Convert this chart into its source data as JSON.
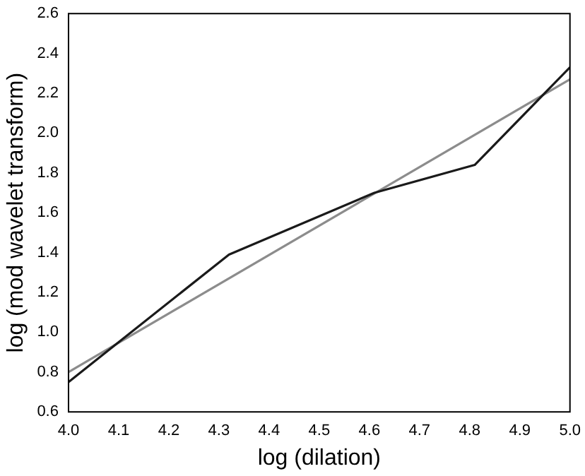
{
  "chart_data": {
    "type": "line",
    "xlabel": "log (dilation)",
    "ylabel": "log (mod wavelet transform)",
    "xlim": [
      4.0,
      5.0
    ],
    "ylim": [
      0.6,
      2.6
    ],
    "xticks": [
      {
        "value": 4.0,
        "label": "4.0"
      },
      {
        "value": 4.1,
        "label": "4.1"
      },
      {
        "value": 4.2,
        "label": "4.2"
      },
      {
        "value": 4.3,
        "label": "4.3"
      },
      {
        "value": 4.4,
        "label": "4.4"
      },
      {
        "value": 4.5,
        "label": "4.5"
      },
      {
        "value": 4.6,
        "label": "4.6"
      },
      {
        "value": 4.7,
        "label": "4.7"
      },
      {
        "value": 4.8,
        "label": "4.8"
      },
      {
        "value": 4.9,
        "label": "4.9"
      },
      {
        "value": 5.0,
        "label": "5.0"
      }
    ],
    "yticks": [
      {
        "value": 0.6,
        "label": "0.6"
      },
      {
        "value": 0.8,
        "label": "0.8"
      },
      {
        "value": 1.0,
        "label": "1.0"
      },
      {
        "value": 1.2,
        "label": "1.2"
      },
      {
        "value": 1.4,
        "label": "1.4"
      },
      {
        "value": 1.6,
        "label": "1.6"
      },
      {
        "value": 1.8,
        "label": "1.8"
      },
      {
        "value": 2.0,
        "label": "2.0"
      },
      {
        "value": 2.2,
        "label": "2.2"
      },
      {
        "value": 2.4,
        "label": "2.4"
      },
      {
        "value": 2.6,
        "label": "2.6"
      }
    ],
    "grid": false,
    "legend": false,
    "marker": "none",
    "line_style": "solid",
    "series": [
      {
        "color": "#1a1a1a",
        "x": [
          4.0,
          4.32,
          4.61,
          4.81,
          5.0
        ],
        "values": [
          0.75,
          1.39,
          1.7,
          1.84,
          2.33
        ]
      },
      {
        "color": "#8c8c8c",
        "x": [
          4.0,
          5.0
        ],
        "values": [
          0.8,
          2.27
        ]
      }
    ]
  }
}
